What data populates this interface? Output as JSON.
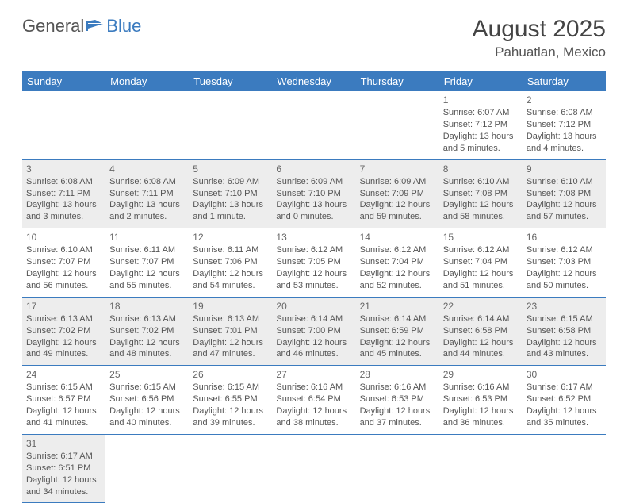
{
  "brand": {
    "word1": "General",
    "word2": "Blue"
  },
  "title": "August 2025",
  "location": "Pahuatlan, Mexico",
  "colors": {
    "header_bg": "#3b7bbf",
    "header_text": "#ffffff",
    "shaded_bg": "#ededed",
    "row_border": "#3b7bbf",
    "text": "#555555"
  },
  "weekdays": [
    "Sunday",
    "Monday",
    "Tuesday",
    "Wednesday",
    "Thursday",
    "Friday",
    "Saturday"
  ],
  "first_weekday_index": 5,
  "days": [
    {
      "n": 1,
      "sunrise": "6:07 AM",
      "sunset": "7:12 PM",
      "daylight": "13 hours and 5 minutes."
    },
    {
      "n": 2,
      "sunrise": "6:08 AM",
      "sunset": "7:12 PM",
      "daylight": "13 hours and 4 minutes."
    },
    {
      "n": 3,
      "sunrise": "6:08 AM",
      "sunset": "7:11 PM",
      "daylight": "13 hours and 3 minutes."
    },
    {
      "n": 4,
      "sunrise": "6:08 AM",
      "sunset": "7:11 PM",
      "daylight": "13 hours and 2 minutes."
    },
    {
      "n": 5,
      "sunrise": "6:09 AM",
      "sunset": "7:10 PM",
      "daylight": "13 hours and 1 minute."
    },
    {
      "n": 6,
      "sunrise": "6:09 AM",
      "sunset": "7:10 PM",
      "daylight": "13 hours and 0 minutes."
    },
    {
      "n": 7,
      "sunrise": "6:09 AM",
      "sunset": "7:09 PM",
      "daylight": "12 hours and 59 minutes."
    },
    {
      "n": 8,
      "sunrise": "6:10 AM",
      "sunset": "7:08 PM",
      "daylight": "12 hours and 58 minutes."
    },
    {
      "n": 9,
      "sunrise": "6:10 AM",
      "sunset": "7:08 PM",
      "daylight": "12 hours and 57 minutes."
    },
    {
      "n": 10,
      "sunrise": "6:10 AM",
      "sunset": "7:07 PM",
      "daylight": "12 hours and 56 minutes."
    },
    {
      "n": 11,
      "sunrise": "6:11 AM",
      "sunset": "7:07 PM",
      "daylight": "12 hours and 55 minutes."
    },
    {
      "n": 12,
      "sunrise": "6:11 AM",
      "sunset": "7:06 PM",
      "daylight": "12 hours and 54 minutes."
    },
    {
      "n": 13,
      "sunrise": "6:12 AM",
      "sunset": "7:05 PM",
      "daylight": "12 hours and 53 minutes."
    },
    {
      "n": 14,
      "sunrise": "6:12 AM",
      "sunset": "7:04 PM",
      "daylight": "12 hours and 52 minutes."
    },
    {
      "n": 15,
      "sunrise": "6:12 AM",
      "sunset": "7:04 PM",
      "daylight": "12 hours and 51 minutes."
    },
    {
      "n": 16,
      "sunrise": "6:12 AM",
      "sunset": "7:03 PM",
      "daylight": "12 hours and 50 minutes."
    },
    {
      "n": 17,
      "sunrise": "6:13 AM",
      "sunset": "7:02 PM",
      "daylight": "12 hours and 49 minutes."
    },
    {
      "n": 18,
      "sunrise": "6:13 AM",
      "sunset": "7:02 PM",
      "daylight": "12 hours and 48 minutes."
    },
    {
      "n": 19,
      "sunrise": "6:13 AM",
      "sunset": "7:01 PM",
      "daylight": "12 hours and 47 minutes."
    },
    {
      "n": 20,
      "sunrise": "6:14 AM",
      "sunset": "7:00 PM",
      "daylight": "12 hours and 46 minutes."
    },
    {
      "n": 21,
      "sunrise": "6:14 AM",
      "sunset": "6:59 PM",
      "daylight": "12 hours and 45 minutes."
    },
    {
      "n": 22,
      "sunrise": "6:14 AM",
      "sunset": "6:58 PM",
      "daylight": "12 hours and 44 minutes."
    },
    {
      "n": 23,
      "sunrise": "6:15 AM",
      "sunset": "6:58 PM",
      "daylight": "12 hours and 43 minutes."
    },
    {
      "n": 24,
      "sunrise": "6:15 AM",
      "sunset": "6:57 PM",
      "daylight": "12 hours and 41 minutes."
    },
    {
      "n": 25,
      "sunrise": "6:15 AM",
      "sunset": "6:56 PM",
      "daylight": "12 hours and 40 minutes."
    },
    {
      "n": 26,
      "sunrise": "6:15 AM",
      "sunset": "6:55 PM",
      "daylight": "12 hours and 39 minutes."
    },
    {
      "n": 27,
      "sunrise": "6:16 AM",
      "sunset": "6:54 PM",
      "daylight": "12 hours and 38 minutes."
    },
    {
      "n": 28,
      "sunrise": "6:16 AM",
      "sunset": "6:53 PM",
      "daylight": "12 hours and 37 minutes."
    },
    {
      "n": 29,
      "sunrise": "6:16 AM",
      "sunset": "6:53 PM",
      "daylight": "12 hours and 36 minutes."
    },
    {
      "n": 30,
      "sunrise": "6:17 AM",
      "sunset": "6:52 PM",
      "daylight": "12 hours and 35 minutes."
    },
    {
      "n": 31,
      "sunrise": "6:17 AM",
      "sunset": "6:51 PM",
      "daylight": "12 hours and 34 minutes."
    }
  ],
  "labels": {
    "sunrise_prefix": "Sunrise: ",
    "sunset_prefix": "Sunset: ",
    "daylight_prefix": "Daylight: "
  }
}
